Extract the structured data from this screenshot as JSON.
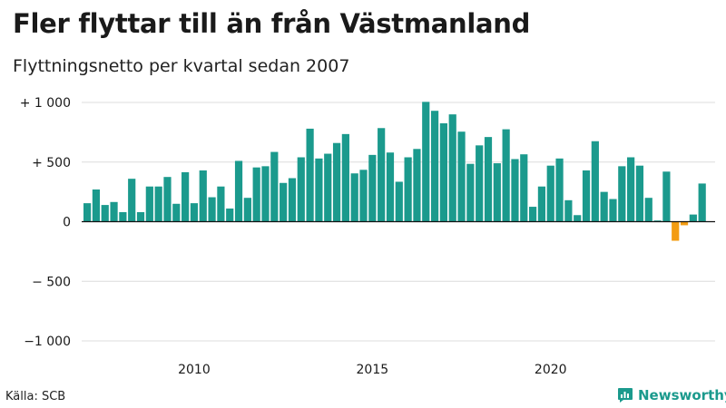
{
  "header": {
    "title": "Fler flyttar till än från Västmanland",
    "subtitle": "Flyttningsnetto per kvartal sedan 2007"
  },
  "footer": {
    "source": "Källa: SCB",
    "brand": "Newsworthy",
    "brand_icon": "newsworthy-logo-icon"
  },
  "colors": {
    "positive": "#1b9a8d",
    "negative": "#f39c12",
    "grid": "#dcdcdc",
    "zero_line": "#111111",
    "text": "#1a1a1a"
  },
  "chart_data": {
    "type": "bar",
    "start_year": 2007,
    "start_quarter": 1,
    "ylim": [
      -1000,
      1000
    ],
    "yticks": [
      1000,
      500,
      0,
      -500,
      -1000
    ],
    "ytick_labels": [
      "+ 1 000",
      "+   500",
      "0",
      "− 500",
      "−1 000"
    ],
    "xticks": [
      2010,
      2015,
      2020
    ],
    "xtick_labels": [
      "2010",
      "2015",
      "2020"
    ],
    "grid": true,
    "legend": "none",
    "values": [
      155,
      270,
      140,
      165,
      80,
      360,
      80,
      295,
      295,
      375,
      150,
      415,
      155,
      430,
      205,
      295,
      110,
      510,
      200,
      455,
      465,
      585,
      325,
      365,
      540,
      780,
      530,
      570,
      660,
      735,
      405,
      435,
      560,
      785,
      580,
      335,
      540,
      610,
      1005,
      930,
      825,
      900,
      755,
      485,
      640,
      710,
      490,
      775,
      525,
      565,
      125,
      295,
      470,
      530,
      180,
      55,
      430,
      675,
      250,
      190,
      465,
      540,
      470,
      200,
      10,
      420,
      -160,
      -30,
      60,
      320
    ]
  }
}
